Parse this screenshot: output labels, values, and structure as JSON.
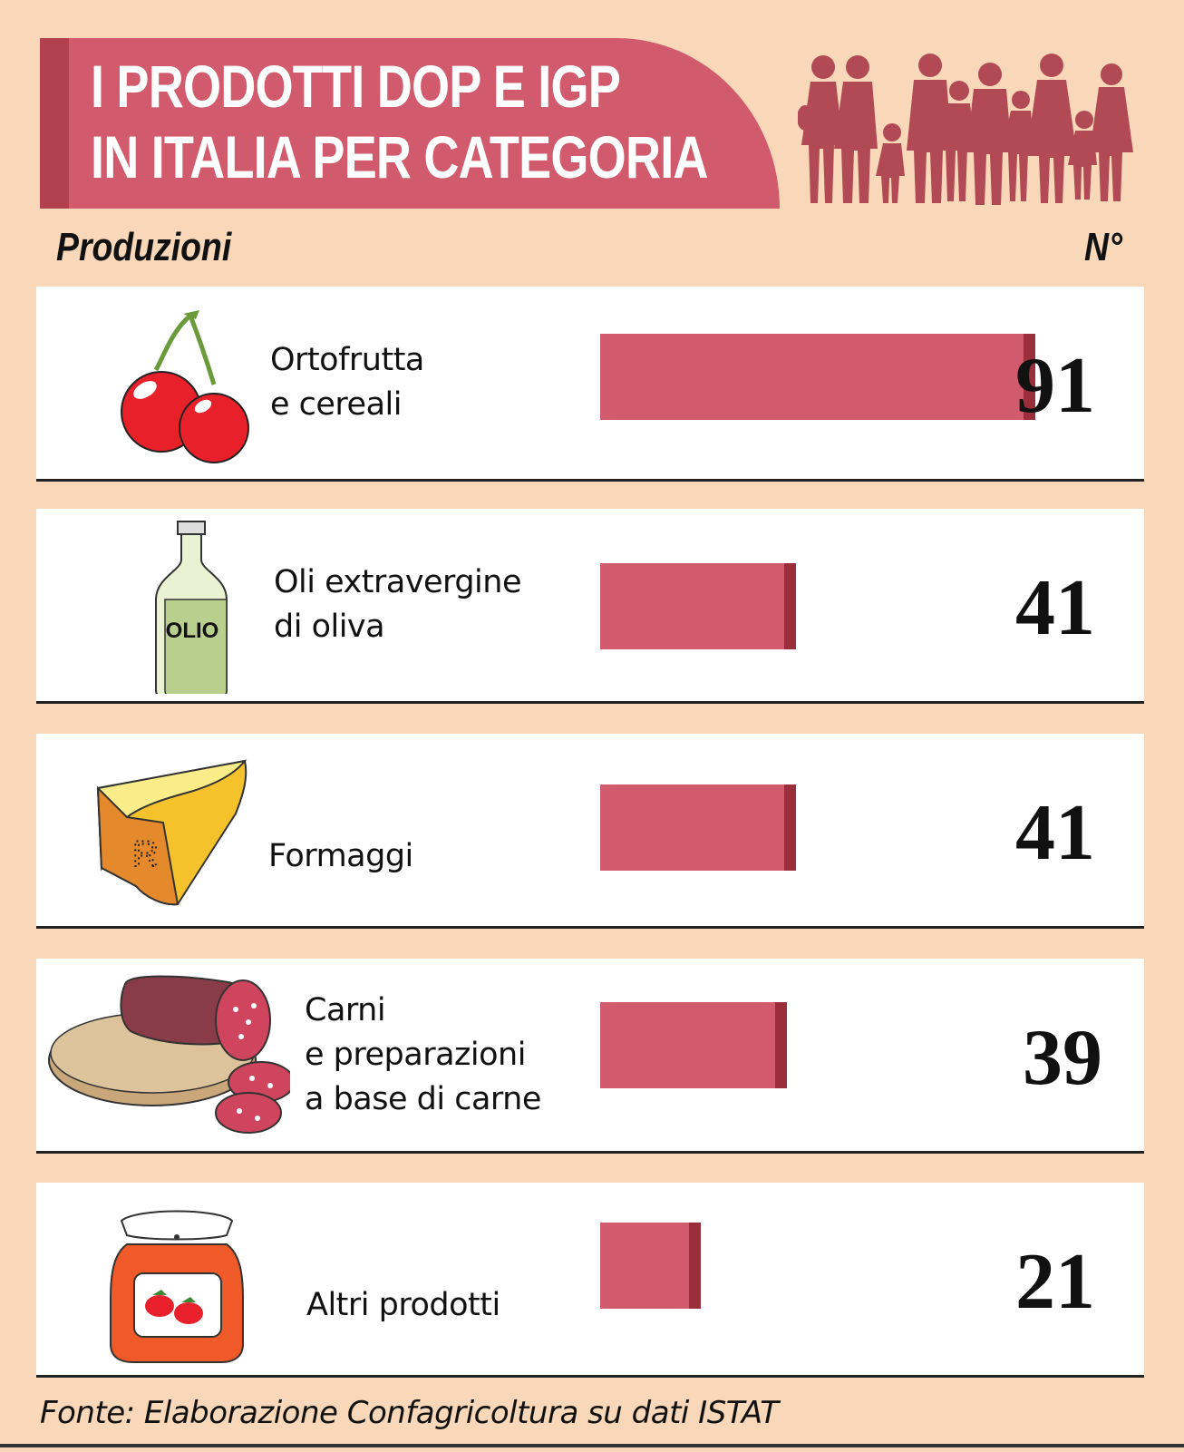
{
  "header": {
    "title_line1": "I PRODOTTI DOP E IGP",
    "title_line2": "IN ITALIA PER CATEGORIA",
    "col_left": "Produzioni",
    "col_right": "N°",
    "banner_color": "#d15b6c",
    "people_icon": "people-silhouette-icon"
  },
  "chart_data": {
    "type": "bar",
    "title": "I PRODOTTI DOP E IGP IN ITALIA PER CATEGORIA",
    "xlabel": "Produzioni",
    "ylabel": "N°",
    "categories": [
      "Ortofrutta\ne cereali",
      "Oli extravergine\ndi oliva",
      "Formaggi",
      "Carni\ne preparazioni\na base di carne",
      "Altri prodotti"
    ],
    "values": [
      91,
      41,
      41,
      39,
      21
    ],
    "bar_color": "#d15b6c",
    "bar_edge_color": "#9a2f3b",
    "icons": [
      "cherries-icon",
      "olive-oil-bottle-icon",
      "cheese-icon",
      "salami-icon",
      "jam-jar-icon"
    ],
    "bottle_label": "OLIO",
    "cheese_mark": "R",
    "grid": false,
    "legend": "none"
  },
  "footer": {
    "source": "Fonte: Elaborazione Confagricoltura su dati ISTAT"
  }
}
